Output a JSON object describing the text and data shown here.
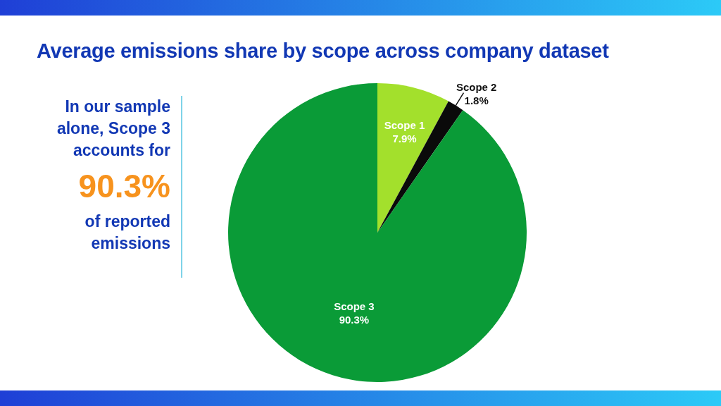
{
  "chart_data": {
    "type": "pie",
    "title": "Average emissions share by scope across company dataset",
    "categories": [
      "Scope 1",
      "Scope 2",
      "Scope 3"
    ],
    "values": [
      7.9,
      1.8,
      90.3
    ],
    "value_labels": [
      "7.9%",
      "1.8%",
      "90.3%"
    ],
    "colors": [
      "#a3e02c",
      "#0a0a0a",
      "#0a9b37"
    ],
    "annotations": [
      "In our sample alone, Scope 3 accounts for",
      "90.3%",
      "of reported emissions"
    ]
  }
}
